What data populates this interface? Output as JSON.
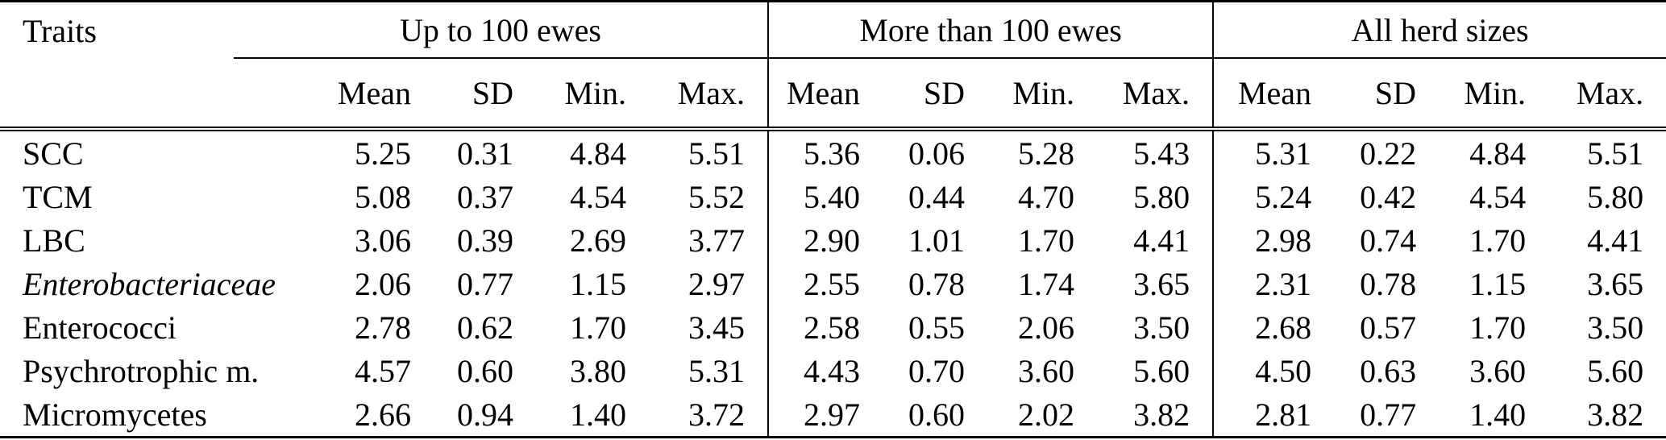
{
  "table": {
    "row_header": "Traits",
    "groups": [
      {
        "label": "Up to 100 ewes"
      },
      {
        "label": "More than 100 ewes"
      },
      {
        "label": "All herd sizes"
      }
    ],
    "stat_headers": [
      "Mean",
      "SD",
      "Min.",
      "Max."
    ],
    "rows": [
      {
        "trait": "SCC",
        "italic": false,
        "values": [
          "5.25",
          "0.31",
          "4.84",
          "5.51",
          "5.36",
          "0.06",
          "5.28",
          "5.43",
          "5.31",
          "0.22",
          "4.84",
          "5.51"
        ]
      },
      {
        "trait": "TCM",
        "italic": false,
        "values": [
          "5.08",
          "0.37",
          "4.54",
          "5.52",
          "5.40",
          "0.44",
          "4.70",
          "5.80",
          "5.24",
          "0.42",
          "4.54",
          "5.80"
        ]
      },
      {
        "trait": "LBC",
        "italic": false,
        "values": [
          "3.06",
          "0.39",
          "2.69",
          "3.77",
          "2.90",
          "1.01",
          "1.70",
          "4.41",
          "2.98",
          "0.74",
          "1.70",
          "4.41"
        ]
      },
      {
        "trait": "Enterobacteriaceae",
        "italic": true,
        "values": [
          "2.06",
          "0.77",
          "1.15",
          "2.97",
          "2.55",
          "0.78",
          "1.74",
          "3.65",
          "2.31",
          "0.78",
          "1.15",
          "3.65"
        ]
      },
      {
        "trait": "Enterococci",
        "italic": false,
        "values": [
          "2.78",
          "0.62",
          "1.70",
          "3.45",
          "2.58",
          "0.55",
          "2.06",
          "3.50",
          "2.68",
          "0.57",
          "1.70",
          "3.50"
        ]
      },
      {
        "trait": "Psychrotrophic m.",
        "italic": false,
        "values": [
          "4.57",
          "0.60",
          "3.80",
          "5.31",
          "4.43",
          "0.70",
          "3.60",
          "5.60",
          "4.50",
          "0.63",
          "3.60",
          "5.60"
        ]
      },
      {
        "trait": "Micromycetes",
        "italic": false,
        "values": [
          "2.66",
          "0.94",
          "1.40",
          "3.72",
          "2.97",
          "0.60",
          "2.02",
          "3.82",
          "2.81",
          "0.77",
          "1.40",
          "3.82"
        ]
      }
    ],
    "text_color": "#000000",
    "background_color": "#ffffff"
  }
}
